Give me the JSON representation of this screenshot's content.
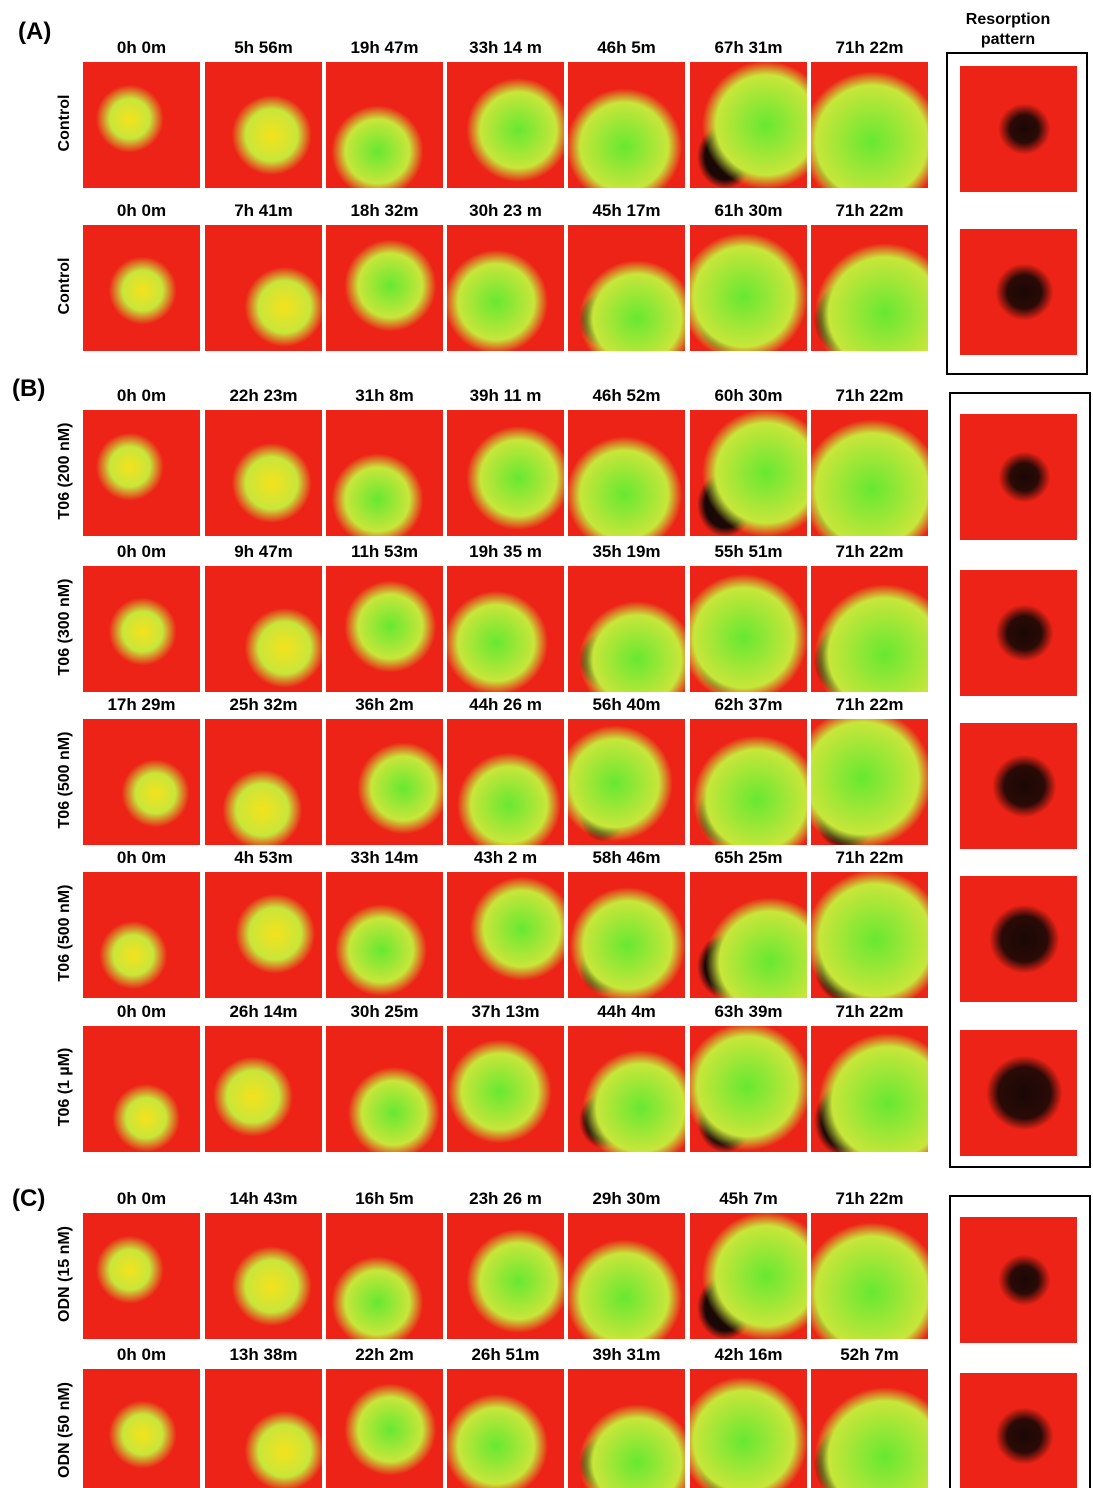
{
  "resorption_header": "Resorption pattern",
  "panels": [
    {
      "label": "(A)",
      "rows": [
        {
          "condition": "Control",
          "times": [
            "0h 0m",
            "5h 56m",
            "19h 47m",
            "33h 14 m",
            "46h 5m",
            "67h 31m",
            "71h 22m"
          ]
        },
        {
          "condition": "Control",
          "times": [
            "0h 0m",
            "7h 41m",
            "18h 32m",
            "30h 23 m",
            "45h 17m",
            "61h 30m",
            "71h 22m"
          ]
        }
      ]
    },
    {
      "label": "(B)",
      "rows": [
        {
          "condition": "T06 (200 nM)",
          "times": [
            "0h 0m",
            "22h 23m",
            "31h 8m",
            "39h 11 m",
            "46h 52m",
            "60h 30m",
            "71h 22m"
          ]
        },
        {
          "condition": "T06 (300 nM)",
          "times": [
            "0h 0m",
            "9h 47m",
            "11h 53m",
            "19h 35 m",
            "35h 19m",
            "55h 51m",
            "71h 22m"
          ]
        },
        {
          "condition": "T06 (500 nM)",
          "times": [
            "17h 29m",
            "25h 32m",
            "36h 2m",
            "44h 26 m",
            "56h 40m",
            "62h 37m",
            "71h 22m"
          ]
        },
        {
          "condition": "T06 (500 nM)",
          "times": [
            "0h 0m",
            "4h 53m",
            "33h 14m",
            "43h 2 m",
            "58h 46m",
            "65h 25m",
            "71h 22m"
          ]
        },
        {
          "condition": "T06 (1 µM)",
          "times": [
            "0h 0m",
            "26h 14m",
            "30h 25m",
            "37h 13m",
            "44h 4m",
            "63h 39m",
            "71h 22m"
          ]
        }
      ]
    },
    {
      "label": "(C)",
      "rows": [
        {
          "condition": "ODN (15 nM)",
          "times": [
            "0h 0m",
            "14h 43m",
            "16h 5m",
            "23h 26 m",
            "29h 30m",
            "45h 7m",
            "71h 22m"
          ]
        },
        {
          "condition": "ODN (50 nM)",
          "times": [
            "0h 0m",
            "13h 38m",
            "22h 2m",
            "26h 51m",
            "39h 31m",
            "42h 16m",
            "52h 7m"
          ]
        }
      ]
    }
  ]
}
